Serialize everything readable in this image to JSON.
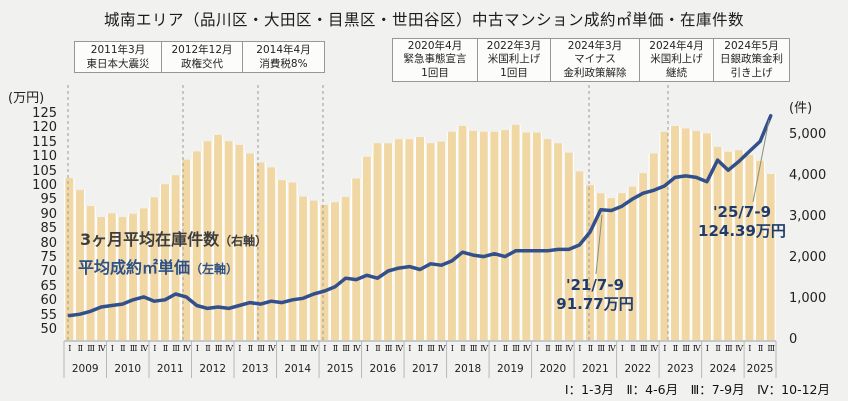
{
  "title": "城南エリア（品川区・大田区・目黒区・世田谷区）中古マンション成約㎡単価・在庫件数",
  "event_boxes": {
    "left": [
      {
        "lines": [
          "2011年3月",
          "東日本大震災"
        ]
      },
      {
        "lines": [
          "2012年12月",
          "政権交代"
        ]
      },
      {
        "lines": [
          "2014年4月",
          "消費税8%"
        ]
      }
    ],
    "right": [
      {
        "lines": [
          "2020年4月",
          "緊急事態宣言",
          "1回目"
        ]
      },
      {
        "lines": [
          "2022年3月",
          "米国利上げ",
          "1回目"
        ]
      },
      {
        "lines": [
          "2024年3月",
          "マイナス",
          "金利政策解除"
        ]
      },
      {
        "lines": [
          "2024年4月",
          "米国利上げ",
          "継続"
        ]
      },
      {
        "lines": [
          "2024年5月",
          "日銀政策金利",
          "引き上げ"
        ]
      }
    ]
  },
  "axes": {
    "left_unit": "(万円)",
    "right_unit": "(件)",
    "left_ticks": [
      125,
      120,
      115,
      110,
      105,
      100,
      95,
      90,
      85,
      80,
      75,
      70,
      65,
      60,
      55,
      50
    ],
    "right_ticks": [
      "5,000",
      "4,000",
      "3,000",
      "2,000",
      "1,000",
      "0"
    ]
  },
  "legend": {
    "bars": "3ヶ月平均在庫件数",
    "bars_axis": "（右軸）",
    "line": "平均成約㎡単価",
    "line_axis": "（左軸）"
  },
  "annotations": [
    {
      "label": "'21/7-9",
      "value": "91.77万円",
      "target_category": "2021Ⅲ"
    },
    {
      "label": "'25/7-9",
      "value": "124.39万円",
      "target_category": "2025Ⅲ"
    }
  ],
  "footnote": "Ⅰ：1-3月　Ⅱ：4-6月　Ⅲ：7-9月　Ⅳ：10-12月",
  "colors": {
    "background": "#f1f1ef",
    "bar": "#f0d7a4",
    "bar_gap": "#ffffff",
    "line": "#31508c",
    "legend_bar_text": "#3d3d3d",
    "legend_line_text": "#2e5186",
    "annotation_text": "#1f3c6d",
    "box_border": "#979797",
    "dashed_guide": "#9b9b9b",
    "axis_line": "#a0a0a0"
  },
  "chart_data": {
    "type": "bar",
    "combo": "bar + line, dual axis",
    "years": [
      2009,
      2010,
      2011,
      2012,
      2013,
      2014,
      2015,
      2016,
      2017,
      2018,
      2019,
      2020,
      2021,
      2022,
      2023,
      2024,
      2025
    ],
    "quarter_labels": [
      "Ⅰ",
      "Ⅱ",
      "Ⅲ",
      "Ⅳ"
    ],
    "categories": [
      "2009Ⅰ",
      "2009Ⅱ",
      "2009Ⅲ",
      "2009Ⅳ",
      "2010Ⅰ",
      "2010Ⅱ",
      "2010Ⅲ",
      "2010Ⅳ",
      "2011Ⅰ",
      "2011Ⅱ",
      "2011Ⅲ",
      "2011Ⅳ",
      "2012Ⅰ",
      "2012Ⅱ",
      "2012Ⅲ",
      "2012Ⅳ",
      "2013Ⅰ",
      "2013Ⅱ",
      "2013Ⅲ",
      "2013Ⅳ",
      "2014Ⅰ",
      "2014Ⅱ",
      "2014Ⅲ",
      "2014Ⅳ",
      "2015Ⅰ",
      "2015Ⅱ",
      "2015Ⅲ",
      "2015Ⅳ",
      "2016Ⅰ",
      "2016Ⅱ",
      "2016Ⅲ",
      "2016Ⅳ",
      "2017Ⅰ",
      "2017Ⅱ",
      "2017Ⅲ",
      "2017Ⅳ",
      "2018Ⅰ",
      "2018Ⅱ",
      "2018Ⅲ",
      "2018Ⅳ",
      "2019Ⅰ",
      "2019Ⅱ",
      "2019Ⅲ",
      "2019Ⅳ",
      "2020Ⅰ",
      "2020Ⅱ",
      "2020Ⅲ",
      "2020Ⅳ",
      "2021Ⅰ",
      "2021Ⅱ",
      "2021Ⅲ",
      "2021Ⅳ",
      "2022Ⅰ",
      "2022Ⅱ",
      "2022Ⅲ",
      "2022Ⅳ",
      "2023Ⅰ",
      "2023Ⅱ",
      "2023Ⅲ",
      "2023Ⅳ",
      "2024Ⅰ",
      "2024Ⅱ",
      "2024Ⅲ",
      "2024Ⅳ",
      "2025Ⅰ",
      "2025Ⅱ",
      "2025Ⅲ"
    ],
    "series": [
      {
        "name": "3ヶ月平均在庫件数（右軸）",
        "type": "bar",
        "axis": "right",
        "unit": "件",
        "values": [
          3950,
          3660,
          3270,
          3000,
          3090,
          3000,
          3080,
          3210,
          3480,
          3800,
          4020,
          4400,
          4600,
          4850,
          5000,
          4850,
          4760,
          4550,
          4330,
          4210,
          3900,
          3840,
          3500,
          3400,
          3300,
          3360,
          3490,
          3940,
          4470,
          4800,
          4800,
          4900,
          4900,
          4950,
          4800,
          4840,
          5080,
          5220,
          5100,
          5080,
          5080,
          5120,
          5250,
          5060,
          5060,
          4900,
          4800,
          4570,
          4110,
          3780,
          3580,
          3460,
          3580,
          3740,
          4070,
          4550,
          5080,
          5220,
          5160,
          5100,
          5040,
          4710,
          4590,
          4630,
          4510,
          4370,
          4050
        ]
      },
      {
        "name": "平均成約㎡単価（左軸）",
        "type": "line",
        "axis": "left",
        "unit": "万円",
        "values": [
          55.0,
          55.5,
          56.5,
          58.0,
          58.5,
          59.0,
          60.5,
          61.5,
          60.0,
          60.5,
          62.5,
          61.5,
          58.5,
          57.5,
          58.0,
          57.5,
          58.5,
          59.5,
          59.0,
          60.0,
          59.5,
          60.5,
          61.0,
          62.5,
          63.5,
          65.0,
          68.0,
          67.5,
          69.0,
          68.0,
          70.5,
          71.5,
          72.0,
          71.0,
          73.0,
          72.5,
          74.0,
          77.0,
          76.0,
          75.5,
          76.5,
          75.5,
          77.5,
          77.5,
          77.5,
          77.5,
          78.0,
          78.0,
          79.5,
          84.0,
          91.77,
          91.5,
          93.0,
          95.5,
          97.5,
          98.5,
          100.0,
          103.0,
          103.5,
          103.0,
          101.5,
          109.0,
          105.5,
          108.5,
          112.0,
          115.5,
          124.39
        ]
      }
    ],
    "left_ylim": [
      50,
      125
    ],
    "right_ylim": [
      0,
      5000
    ],
    "grid": false,
    "legend_position": "inside plot, upper-left of center"
  }
}
